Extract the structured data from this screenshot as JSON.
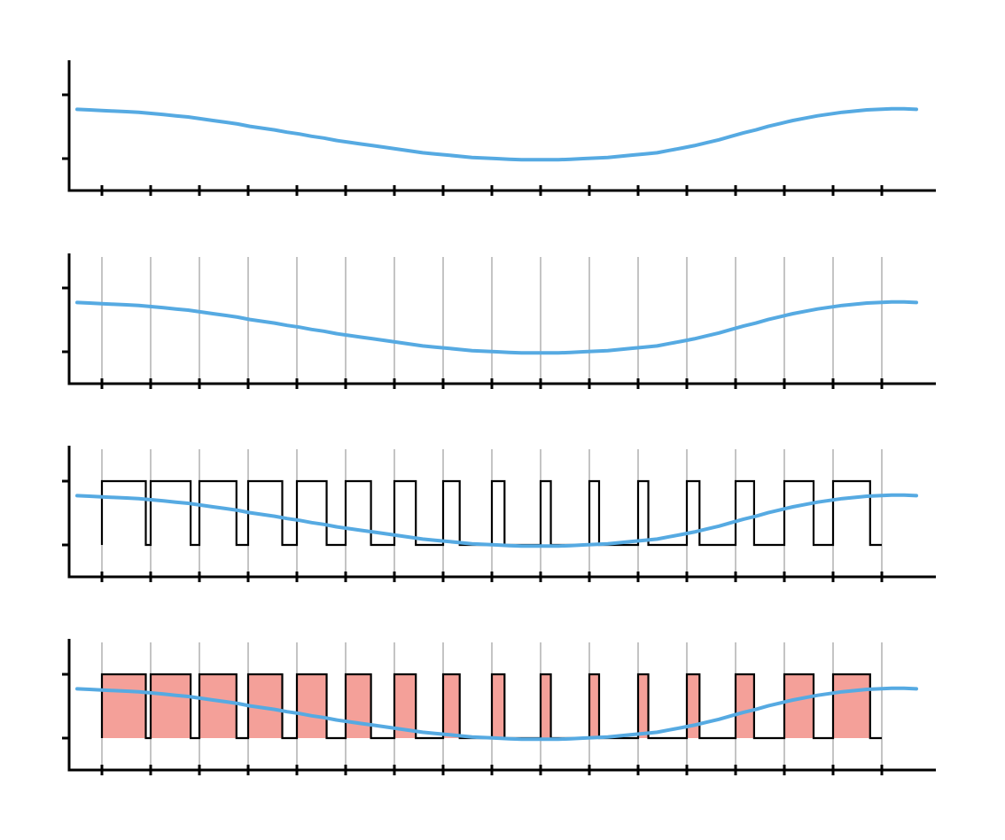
{
  "colors": {
    "signal": "#56aae2",
    "pwm": "#000000",
    "fill": "#f4a099",
    "grid": "#888888",
    "axis": "#000000",
    "background": "#ffffff"
  },
  "chart_data": {
    "type": "line",
    "description_free": true,
    "panels": [
      "signal",
      "signal-with-sample-lines",
      "signal-with-pwm",
      "signal-with-filled-pwm"
    ],
    "x_ticks": 17,
    "y_ticks": 2,
    "ylim": [
      0,
      1
    ],
    "signal": {
      "x": [
        0,
        0.25,
        0.5,
        0.75,
        1,
        1.25,
        1.5,
        1.75,
        2,
        2.25,
        2.5,
        2.75,
        3,
        3.25,
        3.5,
        3.75,
        4,
        4.25,
        4.5,
        4.75,
        5,
        5.25,
        5.5,
        5.75,
        6,
        6.25,
        6.5,
        6.75,
        7,
        7.25,
        7.5,
        7.75,
        8,
        8.25,
        8.5,
        8.75,
        9,
        9.25,
        9.5,
        9.75,
        10,
        10.25,
        10.5,
        10.75,
        11,
        11.25,
        11.5,
        11.75,
        12,
        12.25,
        12.5,
        12.75,
        13,
        13.25,
        13.5,
        13.75,
        14,
        14.25,
        14.5,
        14.75,
        15,
        15.25,
        15.5,
        15.75,
        16,
        16.25,
        16.5,
        16.75,
        17
      ],
      "y": [
        0.87,
        0.86,
        0.85,
        0.84,
        0.83,
        0.82,
        0.8,
        0.78,
        0.76,
        0.74,
        0.71,
        0.68,
        0.65,
        0.62,
        0.58,
        0.55,
        0.52,
        0.48,
        0.45,
        0.41,
        0.38,
        0.34,
        0.31,
        0.28,
        0.25,
        0.22,
        0.19,
        0.16,
        0.13,
        0.11,
        0.09,
        0.07,
        0.05,
        0.04,
        0.03,
        0.02,
        0.01,
        0.01,
        0.01,
        0.01,
        0.02,
        0.03,
        0.04,
        0.05,
        0.07,
        0.09,
        0.11,
        0.13,
        0.17,
        0.21,
        0.25,
        0.3,
        0.35,
        0.41,
        0.47,
        0.52,
        0.58,
        0.63,
        0.68,
        0.72,
        0.76,
        0.79,
        0.82,
        0.84,
        0.86,
        0.87,
        0.88,
        0.88,
        0.87
      ]
    },
    "pwm": {
      "period_starts": [
        0.5,
        1.5,
        2.5,
        3.5,
        4.5,
        5.5,
        6.5,
        7.5,
        8.5,
        9.5,
        10.5,
        11.5,
        12.5,
        13.5,
        14.5,
        15.5
      ],
      "duty": [
        0.9,
        0.82,
        0.76,
        0.7,
        0.61,
        0.52,
        0.44,
        0.34,
        0.26,
        0.21,
        0.2,
        0.21,
        0.26,
        0.38,
        0.6,
        0.76
      ],
      "end": 16.5
    }
  }
}
